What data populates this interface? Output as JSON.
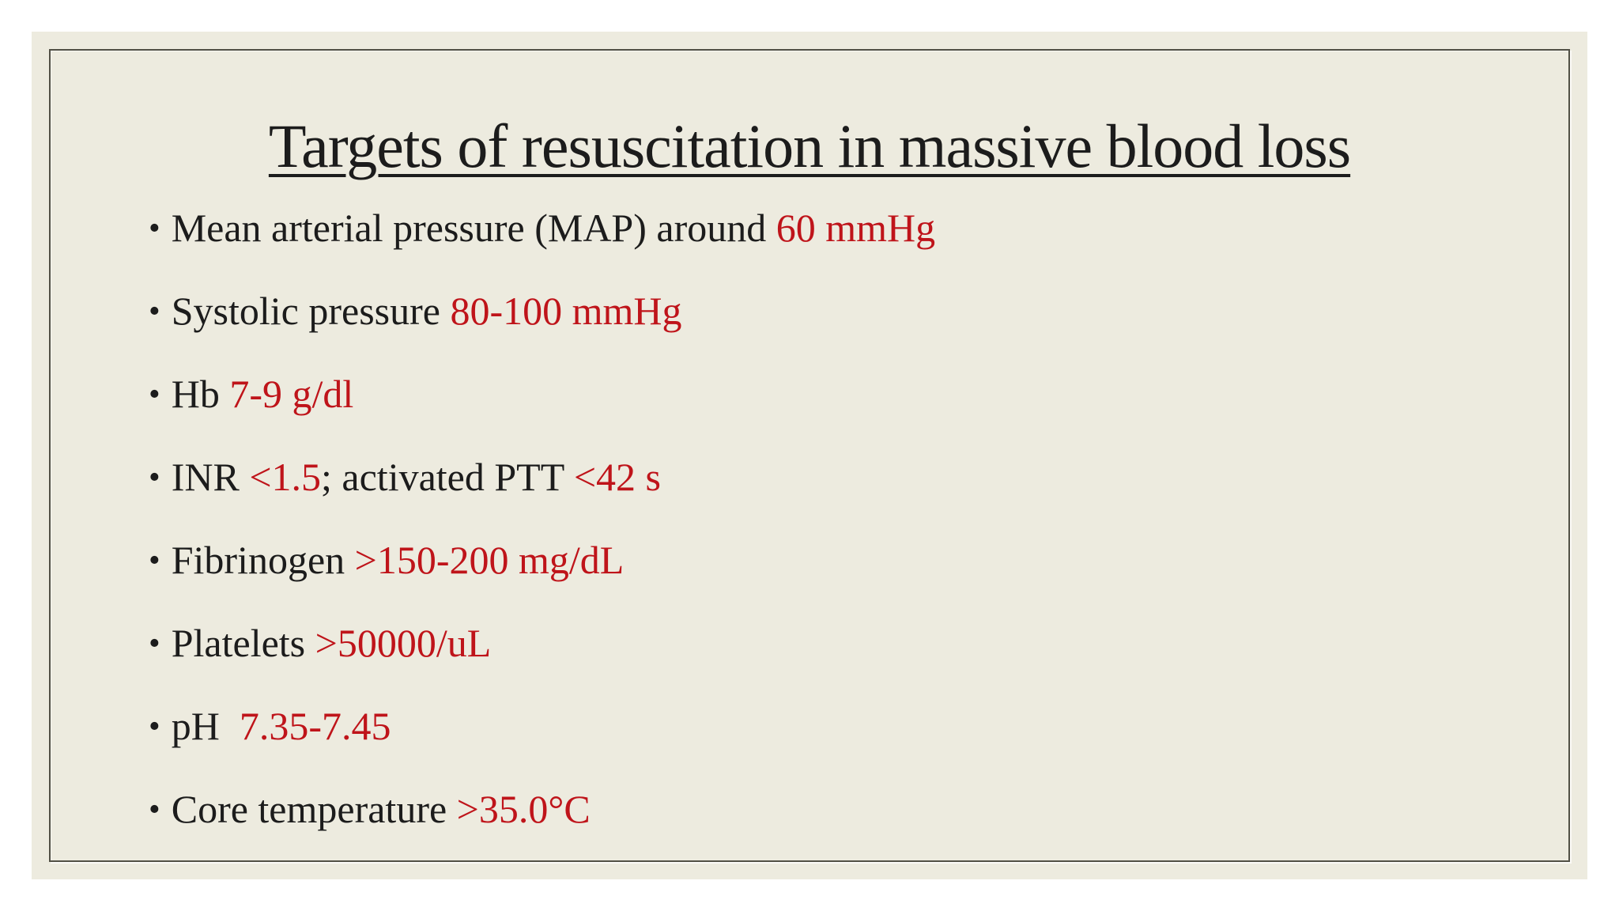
{
  "colors": {
    "slide-bg": "#edebdf",
    "border": "#515045",
    "text": "#1c1c1c",
    "red": "#bf141a"
  },
  "slide": {
    "title": "Targets of resuscitation in massive blood loss",
    "bullet_char": "•",
    "bullets": [
      {
        "segments": [
          {
            "text": "Mean arterial pressure (MAP) around ",
            "color": "black"
          },
          {
            "text": "60 mmHg",
            "color": "red"
          }
        ]
      },
      {
        "segments": [
          {
            "text": "Systolic pressure ",
            "color": "black"
          },
          {
            "text": "80-100 mmHg",
            "color": "red"
          }
        ]
      },
      {
        "segments": [
          {
            "text": "Hb ",
            "color": "black"
          },
          {
            "text": "7-9 g/dl",
            "color": "red"
          }
        ]
      },
      {
        "segments": [
          {
            "text": "INR ",
            "color": "black"
          },
          {
            "text": "<1.5",
            "color": "red"
          },
          {
            "text": "; activated PTT ",
            "color": "black"
          },
          {
            "text": "<42 s",
            "color": "red"
          }
        ]
      },
      {
        "segments": [
          {
            "text": "Fibrinogen ",
            "color": "black"
          },
          {
            "text": ">150-200 mg/dL",
            "color": "red"
          }
        ]
      },
      {
        "segments": [
          {
            "text": "Platelets ",
            "color": "black"
          },
          {
            "text": ">50000/uL",
            "color": "red"
          }
        ]
      },
      {
        "segments": [
          {
            "text": "pH  ",
            "color": "black"
          },
          {
            "text": "7.35-7.45",
            "color": "red"
          }
        ]
      },
      {
        "segments": [
          {
            "text": "Core temperature ",
            "color": "black"
          },
          {
            "text": ">35.0°C",
            "color": "red"
          }
        ]
      }
    ]
  }
}
